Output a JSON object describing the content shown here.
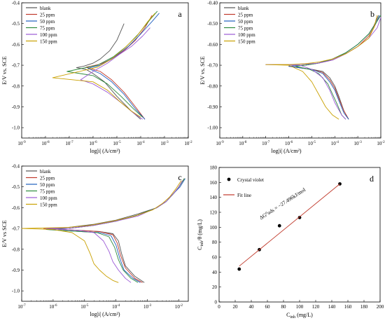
{
  "chart_data": [
    {
      "id": "a",
      "type": "line",
      "panel_label": "a",
      "ylabel": "E/V vs. SCE",
      "xlabel": "log|i| (A/cm²)",
      "xscale": "log",
      "xlim": [
        1e-09,
        0.01
      ],
      "ylim": [
        -1.05,
        -0.4
      ],
      "xticks_exp": [
        -9,
        -8,
        -7,
        -6,
        -5,
        -4,
        -3,
        -2
      ],
      "yticks": [
        -1.0,
        -0.9,
        -0.8,
        -0.7,
        -0.6,
        -0.5,
        -0.4
      ],
      "ytick_labels": [
        "-1.0",
        "-0.9",
        "-0.8",
        "-0.7",
        "-0.6",
        "-0.5",
        "-0.4"
      ],
      "legend": [
        "blank",
        "25 ppm",
        "50 ppm",
        "75 ppm",
        "100 ppm",
        "150 ppm"
      ],
      "legend_position": "top-left",
      "series": [
        {
          "name": "blank",
          "color": "#555555",
          "x": [
            2e-05,
            1e-05,
            5e-06,
            2e-06,
            1e-06,
            4e-07,
            2e-07,
            5e-07,
            1e-06,
            3e-06,
            1e-05,
            4e-05,
            0.0001
          ],
          "y": [
            -0.5,
            -0.58,
            -0.63,
            -0.67,
            -0.69,
            -0.705,
            -0.712,
            -0.72,
            -0.74,
            -0.78,
            -0.85,
            -0.92,
            -0.96
          ]
        },
        {
          "name": "25 ppm",
          "color": "#c0392b",
          "x": [
            0.0003,
            0.00015,
            6e-05,
            2e-05,
            6e-06,
            2e-06,
            5e-07,
            2e-06,
            6e-06,
            2e-05,
            6e-05,
            0.00015
          ],
          "y": [
            -0.46,
            -0.52,
            -0.58,
            -0.63,
            -0.67,
            -0.695,
            -0.71,
            -0.73,
            -0.77,
            -0.83,
            -0.9,
            -0.96
          ]
        },
        {
          "name": "50 ppm",
          "color": "#1f5fbf",
          "x": [
            0.0006,
            0.0003,
            0.0001,
            3e-05,
            8e-06,
            2e-06,
            6e-07,
            2e-06,
            6e-06,
            2e-05,
            6e-05,
            0.00015
          ],
          "y": [
            -0.45,
            -0.49,
            -0.55,
            -0.61,
            -0.66,
            -0.7,
            -0.715,
            -0.74,
            -0.78,
            -0.84,
            -0.91,
            -0.96
          ]
        },
        {
          "name": "75 ppm",
          "color": "#2e8b3d",
          "x": [
            0.0005,
            0.00025,
            8e-05,
            2.5e-05,
            7e-06,
            1.5e-06,
            8e-08,
            1e-06,
            4e-06,
            1.5e-05,
            5e-05,
            0.00012
          ],
          "y": [
            -0.44,
            -0.48,
            -0.55,
            -0.61,
            -0.66,
            -0.7,
            -0.73,
            -0.75,
            -0.79,
            -0.85,
            -0.91,
            -0.95
          ]
        },
        {
          "name": "100 ppm",
          "color": "#9b59d6",
          "x": [
            0.00025,
            0.00012,
            4e-05,
            1.2e-05,
            4e-06,
            1e-06,
            3e-07,
            1e-06,
            4e-06,
            1.5e-05,
            5e-05,
            0.00012
          ],
          "y": [
            -0.52,
            -0.56,
            -0.61,
            -0.65,
            -0.69,
            -0.73,
            -0.77,
            -0.79,
            -0.83,
            -0.88,
            -0.93,
            -0.96
          ]
        },
        {
          "name": "150 ppm",
          "color": "#c9a000",
          "x": [
            0.0004,
            0.0002,
            7e-05,
            2e-05,
            6e-06,
            1.5e-06,
            2e-08,
            1e-06,
            4e-06,
            1.2e-05,
            4e-05,
            0.0001
          ],
          "y": [
            -0.45,
            -0.49,
            -0.56,
            -0.62,
            -0.67,
            -0.71,
            -0.76,
            -0.78,
            -0.82,
            -0.87,
            -0.92,
            -0.95
          ]
        }
      ]
    },
    {
      "id": "b",
      "type": "line",
      "panel_label": "b",
      "ylabel": "E/V vs. SCE",
      "xlabel": "log|i| (A/cm²)",
      "xscale": "log",
      "xlim": [
        1e-09,
        0.01
      ],
      "ylim": [
        -1.05,
        -0.4
      ],
      "xticks_exp": [
        -9,
        -8,
        -7,
        -6,
        -5,
        -4,
        -3,
        -2
      ],
      "yticks": [
        -1.0,
        -0.9,
        -0.8,
        -0.7,
        -0.6,
        -0.5,
        -0.4
      ],
      "ytick_labels": [
        "-1.00",
        "-0.90",
        "-0.80",
        "-0.70",
        "-0.60",
        "-0.50",
        "-0.40"
      ],
      "legend": [
        "blank",
        "25 ppm",
        "50 ppm",
        "75 ppm",
        "100 ppm",
        "150 ppm"
      ],
      "legend_position": "top-left",
      "series": [
        {
          "name": "blank",
          "color": "#555555",
          "x": [
            0.008,
            0.005,
            0.003,
            0.001,
            0.0003,
            8e-05,
            2e-05,
            5e-06,
            1e-06,
            2e-06,
            1e-05,
            3e-05,
            6e-05,
            0.0001,
            0.00015,
            0.00025,
            0.0004
          ],
          "y": [
            -0.46,
            -0.51,
            -0.55,
            -0.6,
            -0.64,
            -0.67,
            -0.69,
            -0.7,
            -0.705,
            -0.71,
            -0.72,
            -0.73,
            -0.76,
            -0.8,
            -0.85,
            -0.92,
            -0.96
          ]
        },
        {
          "name": "25 ppm",
          "color": "#c0392b",
          "x": [
            0.008,
            0.005,
            0.003,
            0.001,
            0.0003,
            8e-05,
            2e-05,
            5e-06,
            1e-06,
            2e-06,
            1e-05,
            3e-05,
            6e-05,
            0.0001,
            0.00015,
            0.00025,
            0.0004
          ],
          "y": [
            -0.47,
            -0.52,
            -0.56,
            -0.61,
            -0.645,
            -0.675,
            -0.69,
            -0.7,
            -0.705,
            -0.71,
            -0.72,
            -0.735,
            -0.77,
            -0.81,
            -0.86,
            -0.92,
            -0.96
          ]
        },
        {
          "name": "50 ppm",
          "color": "#1f5fbf",
          "x": [
            0.009,
            0.006,
            0.003,
            0.001,
            0.0003,
            8e-05,
            2e-05,
            5e-06,
            1e-06,
            2e-06,
            1e-05,
            3e-05,
            6e-05,
            0.0001,
            0.00015,
            0.00025,
            0.0004
          ],
          "y": [
            -0.46,
            -0.5,
            -0.55,
            -0.6,
            -0.64,
            -0.67,
            -0.69,
            -0.7,
            -0.705,
            -0.71,
            -0.72,
            -0.74,
            -0.78,
            -0.82,
            -0.87,
            -0.93,
            -0.96
          ]
        },
        {
          "name": "75 ppm",
          "color": "#2e8b3d",
          "x": [
            0.01,
            0.006,
            0.003,
            0.001,
            0.0003,
            8e-05,
            2e-05,
            5e-06,
            2e-06,
            3e-06,
            8e-06,
            2e-05,
            5e-05,
            8e-05,
            0.00013,
            0.0002,
            0.0003
          ],
          "y": [
            -0.46,
            -0.5,
            -0.55,
            -0.6,
            -0.64,
            -0.67,
            -0.69,
            -0.7,
            -0.705,
            -0.71,
            -0.72,
            -0.74,
            -0.79,
            -0.84,
            -0.89,
            -0.94,
            -0.96
          ]
        },
        {
          "name": "100 ppm",
          "color": "#9b59d6",
          "x": [
            0.01,
            0.007,
            0.003,
            0.001,
            0.0003,
            8e-05,
            2e-05,
            5e-06,
            1e-06,
            1e-07,
            3e-06,
            1e-05,
            3e-05,
            6e-05,
            0.0001,
            0.0002,
            0.0003
          ],
          "y": [
            -0.47,
            -0.52,
            -0.57,
            -0.61,
            -0.645,
            -0.675,
            -0.69,
            -0.695,
            -0.697,
            -0.697,
            -0.7,
            -0.72,
            -0.76,
            -0.82,
            -0.88,
            -0.94,
            -0.96
          ]
        },
        {
          "name": "150 ppm",
          "color": "#c9a000",
          "x": [
            0.007,
            0.005,
            0.003,
            0.001,
            0.0003,
            8e-05,
            2e-05,
            5e-06,
            1e-06,
            1e-07,
            1e-06,
            4e-06,
            1e-05,
            2e-05,
            4e-05,
            8e-05,
            0.00015
          ],
          "y": [
            -0.46,
            -0.52,
            -0.57,
            -0.61,
            -0.645,
            -0.67,
            -0.685,
            -0.693,
            -0.697,
            -0.697,
            -0.7,
            -0.73,
            -0.78,
            -0.84,
            -0.9,
            -0.94,
            -0.96
          ]
        }
      ]
    },
    {
      "id": "c",
      "type": "line",
      "panel_label": "c",
      "ylabel": "E/V vs SCE",
      "xlabel": "log|i| (A/cm²)",
      "xscale": "log",
      "xlim": [
        1e-07,
        0.02
      ],
      "ylim": [
        -1.05,
        -0.4
      ],
      "xticks_exp": [
        -7,
        -6,
        -5,
        -4,
        -3,
        -2
      ],
      "yticks": [
        -1.0,
        -0.9,
        -0.8,
        -0.7,
        -0.6,
        -0.5,
        -0.4
      ],
      "ytick_labels": [
        "-1.0",
        "-0.9",
        "-0.8",
        "-0.7",
        "-0.6",
        "-0.5",
        "-0.4"
      ],
      "legend": [
        "blank",
        "25 ppm",
        "50 ppm",
        "75 ppm",
        "100 ppm",
        "150 ppm"
      ],
      "legend_position": "top-left",
      "series": [
        {
          "name": "blank",
          "color": "#555555",
          "x": [
            0.015,
            0.01,
            0.007,
            0.004,
            0.002,
            0.0005,
            0.0001,
            2e-05,
            3e-06,
            6e-07,
            2e-06,
            8e-06,
            3e-05,
            8e-05,
            0.00012,
            0.00015,
            0.0002,
            0.0004,
            0.0008
          ],
          "y": [
            -0.46,
            -0.5,
            -0.53,
            -0.57,
            -0.6,
            -0.63,
            -0.66,
            -0.68,
            -0.695,
            -0.7,
            -0.705,
            -0.71,
            -0.715,
            -0.725,
            -0.76,
            -0.82,
            -0.88,
            -0.93,
            -0.96
          ]
        },
        {
          "name": "25 ppm",
          "color": "#c0392b",
          "x": [
            0.015,
            0.01,
            0.007,
            0.004,
            0.002,
            0.0005,
            0.0001,
            2e-05,
            3e-06,
            5e-07,
            2e-06,
            8e-06,
            3e-05,
            8e-05,
            0.00011,
            0.00014,
            0.0002,
            0.0004,
            0.0007
          ],
          "y": [
            -0.46,
            -0.5,
            -0.53,
            -0.57,
            -0.6,
            -0.635,
            -0.665,
            -0.685,
            -0.7,
            -0.7,
            -0.705,
            -0.71,
            -0.715,
            -0.73,
            -0.77,
            -0.83,
            -0.89,
            -0.94,
            -0.96
          ]
        },
        {
          "name": "50 ppm",
          "color": "#1f5fbf",
          "x": [
            0.016,
            0.011,
            0.007,
            0.004,
            0.002,
            0.0005,
            0.0001,
            2e-05,
            3e-06,
            7e-07,
            2e-06,
            8e-06,
            3e-05,
            7e-05,
            0.0001,
            0.00013,
            0.00018,
            0.00035,
            0.0006
          ],
          "y": [
            -0.46,
            -0.5,
            -0.53,
            -0.57,
            -0.6,
            -0.635,
            -0.665,
            -0.685,
            -0.7,
            -0.705,
            -0.71,
            -0.715,
            -0.72,
            -0.735,
            -0.78,
            -0.84,
            -0.9,
            -0.94,
            -0.96
          ]
        },
        {
          "name": "75 ppm",
          "color": "#2e8b3d",
          "x": [
            0.015,
            0.01,
            0.007,
            0.004,
            0.002,
            0.0005,
            0.0001,
            2e-05,
            3e-06,
            6e-07,
            2e-06,
            8e-06,
            2.5e-05,
            6e-05,
            9e-05,
            0.00012,
            0.00017,
            0.0003,
            0.0005
          ],
          "y": [
            -0.46,
            -0.5,
            -0.53,
            -0.57,
            -0.6,
            -0.635,
            -0.665,
            -0.685,
            -0.7,
            -0.705,
            -0.71,
            -0.715,
            -0.72,
            -0.74,
            -0.79,
            -0.85,
            -0.9,
            -0.94,
            -0.96
          ]
        },
        {
          "name": "100 ppm",
          "color": "#9b59d6",
          "x": [
            0.013,
            0.009,
            0.006,
            0.004,
            0.002,
            0.0005,
            0.0001,
            2e-05,
            3e-06,
            6e-07,
            2e-06,
            7e-06,
            2e-05,
            4e-05,
            6e-05,
            8e-05,
            0.00012,
            0.0002,
            0.0003
          ],
          "y": [
            -0.47,
            -0.51,
            -0.54,
            -0.57,
            -0.6,
            -0.64,
            -0.665,
            -0.685,
            -0.7,
            -0.7,
            -0.705,
            -0.71,
            -0.72,
            -0.76,
            -0.81,
            -0.86,
            -0.9,
            -0.94,
            -0.96
          ]
        },
        {
          "name": "150 ppm",
          "color": "#c9a000",
          "x": [
            0.012,
            0.008,
            0.005,
            0.003,
            0.0015,
            0.0004,
            8e-05,
            1.5e-05,
            3e-06,
            1e-07,
            1e-06,
            4e-06,
            1e-05,
            1.5e-05,
            2e-05,
            3e-05,
            5e-05,
            8e-05,
            0.00012
          ],
          "y": [
            -0.47,
            -0.51,
            -0.55,
            -0.58,
            -0.61,
            -0.64,
            -0.665,
            -0.685,
            -0.695,
            -0.7,
            -0.705,
            -0.72,
            -0.76,
            -0.82,
            -0.87,
            -0.9,
            -0.93,
            -0.95,
            -0.96
          ]
        }
      ]
    },
    {
      "id": "d",
      "type": "scatter",
      "panel_label": "d",
      "ylabel": "C_inh/θ (mg/L)",
      "xlabel": "C_inh (mg/L)",
      "xlim": [
        0,
        200
      ],
      "ylim": [
        0,
        180
      ],
      "xticks": [
        0,
        20,
        40,
        60,
        80,
        100,
        120,
        140,
        160,
        180,
        200
      ],
      "yticks": [
        0,
        20,
        40,
        60,
        80,
        100,
        120,
        140,
        160,
        180
      ],
      "legend": [
        "Crystal violet",
        "Fit line"
      ],
      "legend_position": "top-left",
      "annotation": "ΔG⁰ads = −27.496kJ/mol",
      "series": [
        {
          "name": "Crystal violet",
          "color": "#000000",
          "marker": "circle",
          "x": [
            25,
            50,
            75,
            100,
            150
          ],
          "y": [
            44,
            70,
            102,
            113,
            158
          ]
        },
        {
          "name": "Fit line",
          "color": "#c0392b",
          "type": "line",
          "x": [
            25,
            150
          ],
          "y": [
            48,
            158
          ]
        }
      ]
    }
  ]
}
